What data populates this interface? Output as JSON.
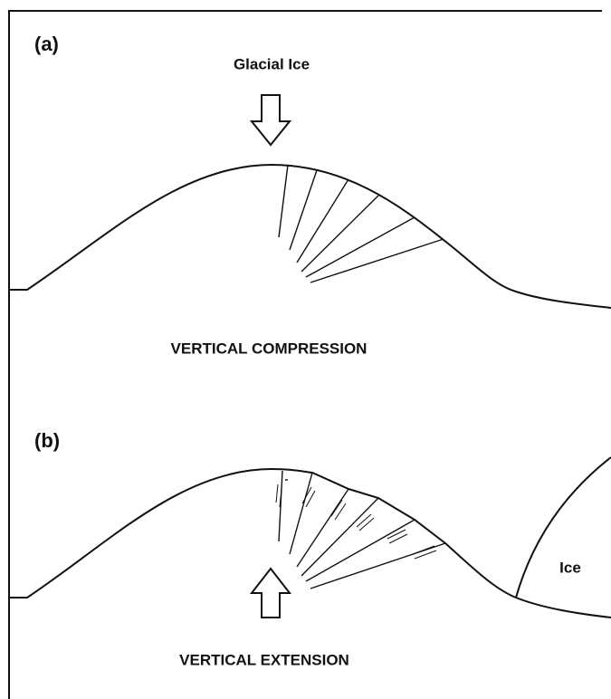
{
  "panel_a": {
    "label": "(a)",
    "arrow_label": "Glacial Ice",
    "caption": "VERTICAL COMPRESSION"
  },
  "panel_b": {
    "label": "(b)",
    "ice_label": "Ice",
    "caption": "VERTICAL EXTENSION"
  }
}
